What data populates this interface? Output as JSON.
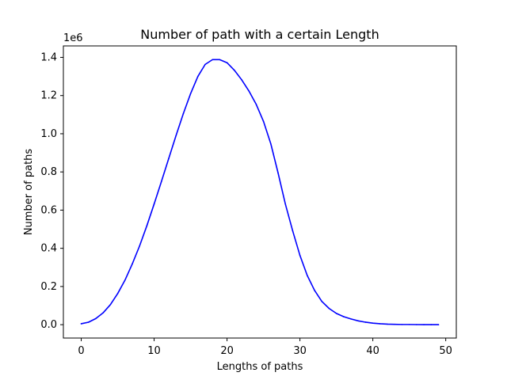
{
  "chart_data": {
    "type": "line",
    "title": "Number of path with a certain Length",
    "xlabel": "Lengths of paths",
    "ylabel": "Number of paths",
    "y_offset_label": "1e6",
    "xlim": [
      -2.45,
      51.45
    ],
    "ylim": [
      -0.07,
      1.46
    ],
    "xticks": [
      0,
      10,
      20,
      30,
      40,
      50
    ],
    "yticks": [
      0.0,
      0.2,
      0.4,
      0.6,
      0.8,
      1.0,
      1.2,
      1.4
    ],
    "xtick_labels": [
      "0",
      "10",
      "20",
      "30",
      "40",
      "50"
    ],
    "ytick_labels": [
      "0.0",
      "0.2",
      "0.4",
      "0.6",
      "0.8",
      "1.0",
      "1.2",
      "1.4"
    ],
    "grid": false,
    "series": [
      {
        "color": "#0000ff",
        "x": [
          0,
          1,
          2,
          3,
          4,
          5,
          6,
          7,
          8,
          9,
          10,
          11,
          12,
          13,
          14,
          15,
          16,
          17,
          18,
          19,
          20,
          21,
          22,
          23,
          24,
          25,
          26,
          27,
          28,
          29,
          30,
          31,
          32,
          33,
          34,
          35,
          36,
          37,
          38,
          39,
          40,
          41,
          42,
          43,
          44,
          45,
          46,
          47,
          48,
          49
        ],
        "y": [
          0.005,
          0.013,
          0.032,
          0.062,
          0.105,
          0.163,
          0.233,
          0.318,
          0.412,
          0.518,
          0.632,
          0.75,
          0.87,
          0.99,
          1.105,
          1.21,
          1.3,
          1.363,
          1.388,
          1.388,
          1.372,
          1.333,
          1.283,
          1.224,
          1.154,
          1.065,
          0.948,
          0.795,
          0.632,
          0.492,
          0.363,
          0.258,
          0.18,
          0.122,
          0.085,
          0.059,
          0.042,
          0.03,
          0.02,
          0.013,
          0.008,
          0.005,
          0.003,
          0.002,
          0.001,
          0.001,
          0.0005,
          0.0003,
          0.0002,
          0.0001
        ]
      }
    ]
  }
}
